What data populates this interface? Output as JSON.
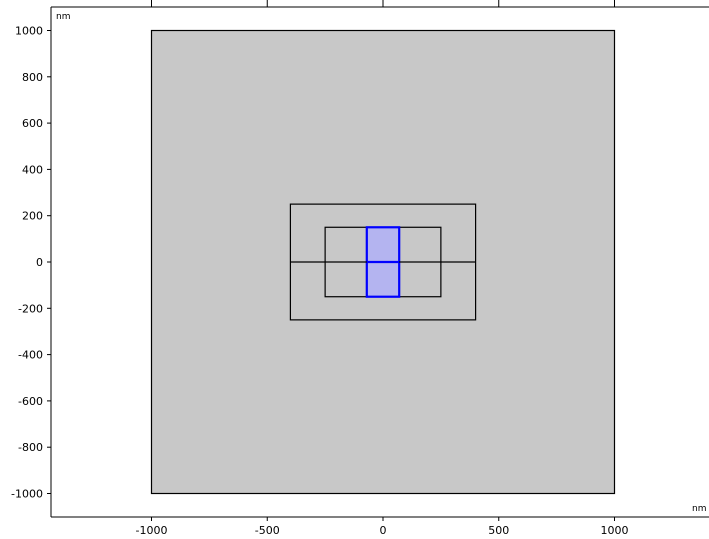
{
  "axes": {
    "x_unit": "nm",
    "y_unit": "nm",
    "x_ticks": [
      {
        "value": -1000,
        "label": "-1000"
      },
      {
        "value": -500,
        "label": "-500"
      },
      {
        "value": 0,
        "label": "0"
      },
      {
        "value": 500,
        "label": "500"
      },
      {
        "value": 1000,
        "label": "1000"
      }
    ],
    "y_ticks": [
      {
        "value": 1000,
        "label": "1000"
      },
      {
        "value": 800,
        "label": "800"
      },
      {
        "value": 600,
        "label": "600"
      },
      {
        "value": 400,
        "label": "400"
      },
      {
        "value": 200,
        "label": "200"
      },
      {
        "value": 0,
        "label": "0"
      },
      {
        "value": -200,
        "label": "-200"
      },
      {
        "value": -400,
        "label": "-400"
      },
      {
        "value": -600,
        "label": "-600"
      },
      {
        "value": -800,
        "label": "-800"
      },
      {
        "value": -1000,
        "label": "-1000"
      }
    ]
  },
  "geometry": {
    "outer_domain": {
      "x": [
        -1000,
        1000
      ],
      "y": [
        -1000,
        1000
      ],
      "fill": "#c8c8c8",
      "stroke": "#000000"
    },
    "rectangles": [
      {
        "name": "outer-box",
        "x": [
          -400,
          400
        ],
        "y": [
          -250,
          250
        ],
        "stroke": "#000000"
      },
      {
        "name": "inner-box",
        "x": [
          -250,
          250
        ],
        "y": [
          -150,
          150
        ],
        "stroke": "#000000"
      },
      {
        "name": "selected-box",
        "x": [
          -70,
          70
        ],
        "y": [
          -150,
          150
        ],
        "stroke": "#0000ff",
        "fill": "#b4b4f0"
      }
    ],
    "lines": [
      {
        "name": "horizontal-divider",
        "x": [
          -400,
          400
        ],
        "y": [
          0,
          0
        ],
        "stroke": "#000000"
      },
      {
        "name": "selected-divider",
        "x": [
          -70,
          70
        ],
        "y": [
          0,
          0
        ],
        "stroke": "#0000ff"
      }
    ]
  }
}
